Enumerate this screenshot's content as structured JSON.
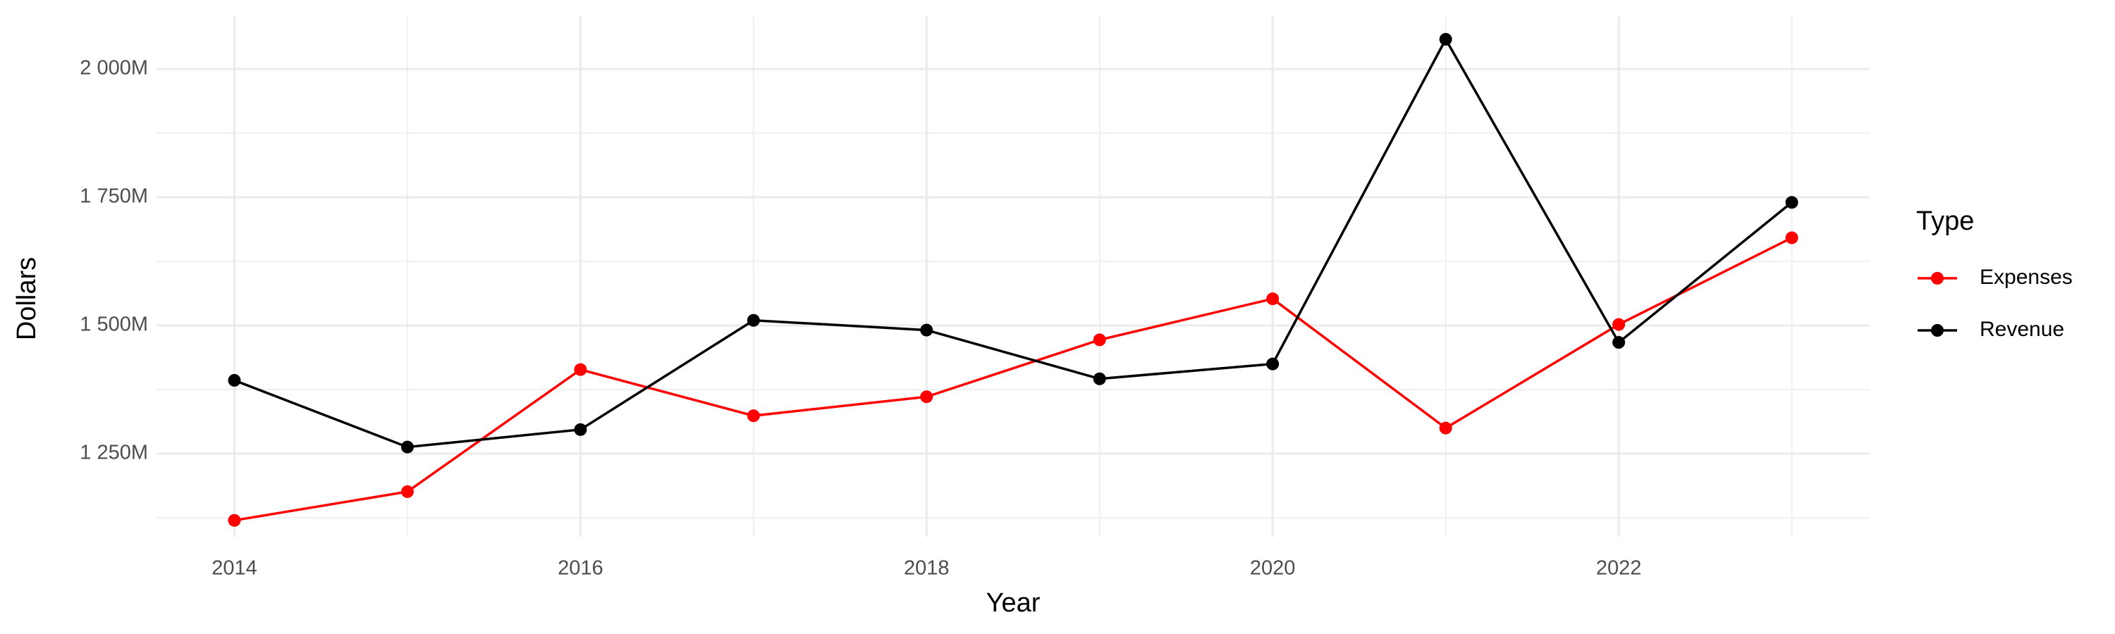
{
  "chart_data": {
    "type": "line",
    "x_label": "Year",
    "y_label": "Dollars",
    "legend_title": "Type",
    "x": [
      2014,
      2015,
      2016,
      2017,
      2018,
      2019,
      2020,
      2021,
      2022,
      2023
    ],
    "series": [
      {
        "name": "Expenses",
        "color": "#ff0000",
        "values": [
          1120000000,
          1176000000,
          1414000000,
          1324000000,
          1361000000,
          1472000000,
          1552000000,
          1300000000,
          1502000000,
          1671000000
        ]
      },
      {
        "name": "Revenue",
        "color": "#000000",
        "values": [
          1393000000,
          1263000000,
          1297000000,
          1510000000,
          1491000000,
          1396000000,
          1425000000,
          2058000000,
          1467000000,
          1740000000
        ]
      }
    ],
    "xlim": [
      2013.55,
      2023.45
    ],
    "xticks": [
      2014,
      2016,
      2018,
      2020,
      2022
    ],
    "ylim": [
      1088000000,
      2103000000
    ],
    "yticks": [
      {
        "value": 1250000000,
        "label": "1 250M"
      },
      {
        "value": 1500000000,
        "label": "1 500M"
      },
      {
        "value": 1750000000,
        "label": "1 750M"
      },
      {
        "value": 2000000000,
        "label": "2 000M"
      }
    ],
    "grid": true,
    "legend": "right"
  }
}
